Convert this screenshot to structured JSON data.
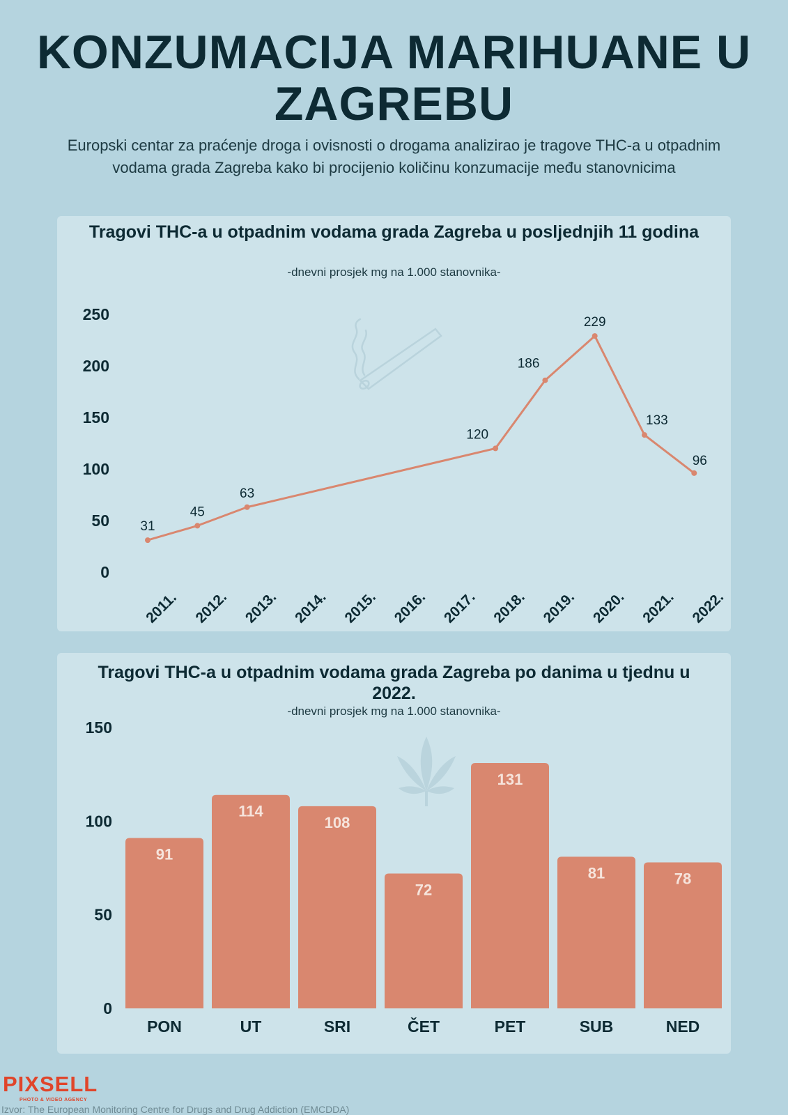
{
  "header": {
    "title": "KONZUMACIJA MARIHUANE U ZAGREBU",
    "intro": "Europski centar za praćenje droga i ovisnosti o drogama analizirao je tragove THC-a u otpadnim vodama grada Zagreba kako bi procijenio količinu konzumacije među stanovnicima"
  },
  "line_panel": {
    "title": "Tragovi THC-a u otpadnim vodama grada Zagreba u posljednjih 11 godina",
    "subtitle": "-dnevni prosjek mg na 1.000 stanovnika-"
  },
  "bar_panel": {
    "title": "Tragovi THC-a u otpadnim vodama grada Zagreba po danima u tjednu u 2022.",
    "subtitle": "-dnevni prosjek mg na 1.000 stanovnika-"
  },
  "footer": {
    "logo": "PIXSELL",
    "logo_tagline": "PHOTO & VIDEO AGENCY",
    "source": "Izvor: The European Monitoring Centre for Drugs and Drug Addiction (EMCDDA)"
  },
  "colors": {
    "background": "#b5d4df",
    "panel": "#cde3ea",
    "accent": "#d9876f",
    "text": "#0d2a33"
  },
  "chart_data": [
    {
      "type": "line",
      "title": "Tragovi THC-a u otpadnim vodama grada Zagreba u posljednjih 11 godina",
      "subtitle": "-dnevni prosjek mg na 1.000 stanovnika-",
      "categories": [
        "2011.",
        "2012.",
        "2013.",
        "2014.",
        "2015.",
        "2016.",
        "2017.",
        "2018.",
        "2019.",
        "2020.",
        "2021.",
        "2022."
      ],
      "series": [
        {
          "values": [
            31,
            45,
            63,
            null,
            null,
            null,
            null,
            120,
            186,
            229,
            133,
            96
          ]
        }
      ],
      "yticks": [
        0,
        50,
        100,
        150,
        200,
        250
      ],
      "ylim": [
        0,
        250
      ],
      "color": "#d9876f",
      "icon": "joint-icon"
    },
    {
      "type": "bar",
      "title": "Tragovi THC-a u otpadnim vodama grada Zagreba po danima u tjednu u 2022.",
      "subtitle": "-dnevni prosjek mg na 1.000 stanovnika-",
      "categories": [
        "PON",
        "UT",
        "SRI",
        "ČET",
        "PET",
        "SUB",
        "NED"
      ],
      "values": [
        91,
        114,
        108,
        72,
        131,
        81,
        78
      ],
      "yticks": [
        0,
        50,
        100,
        150
      ],
      "ylim": [
        0,
        150
      ],
      "color": "#d9876f",
      "icon": "cannabis-leaf-icon"
    }
  ]
}
